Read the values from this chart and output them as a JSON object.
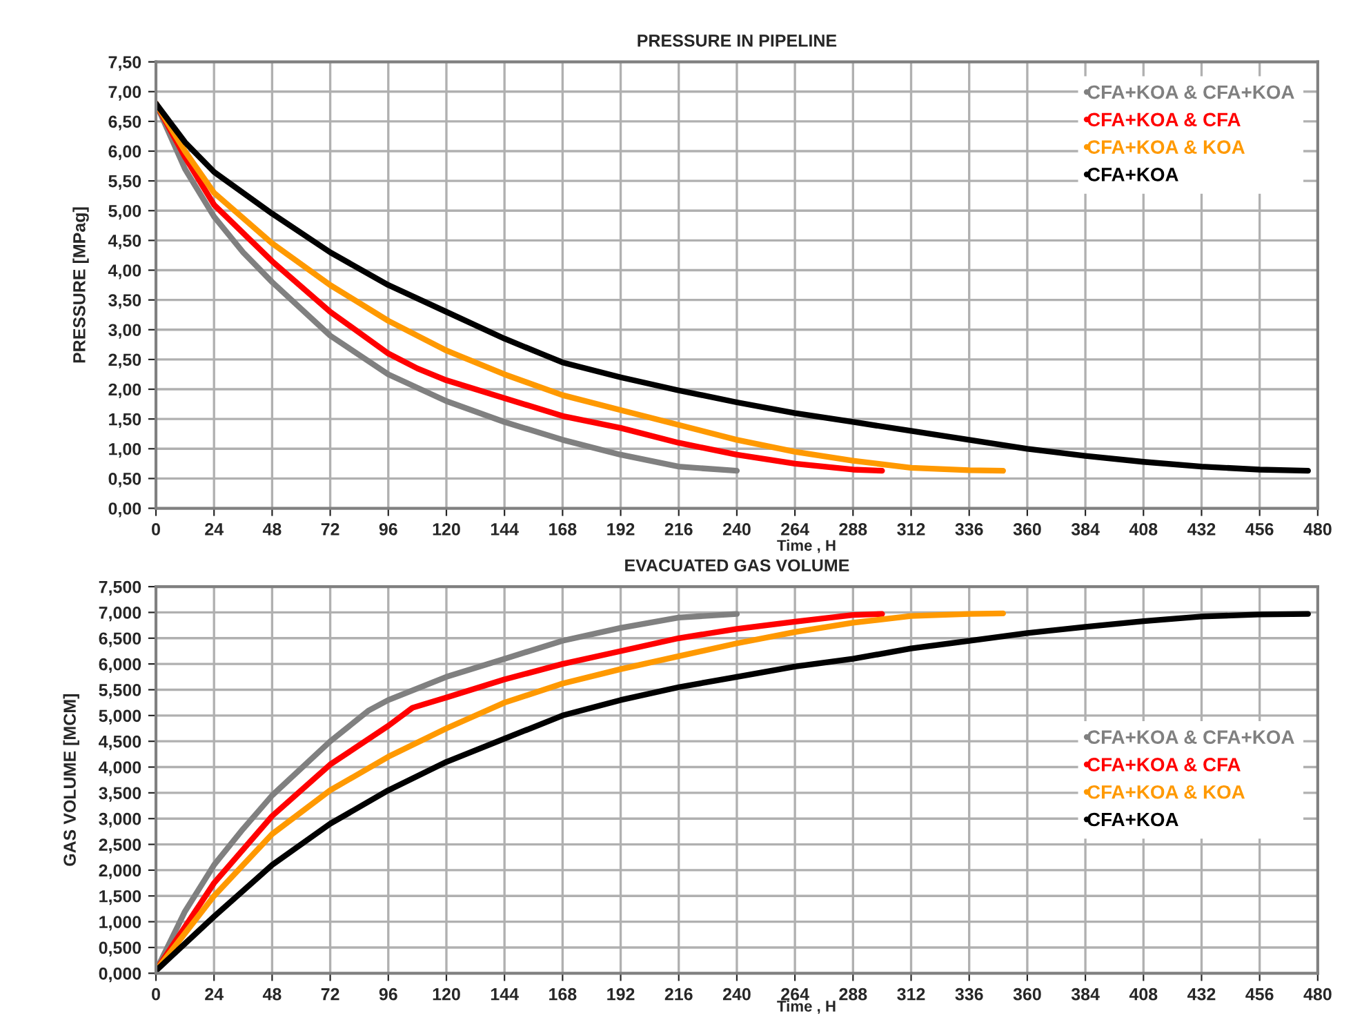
{
  "chart_data": [
    {
      "type": "line",
      "title": "PRESSURE IN PIPELINE",
      "xlabel": "Time , H",
      "ylabel": "PRESSURE [MPag]",
      "xlim": [
        0,
        480
      ],
      "xticks": [
        0,
        24,
        48,
        72,
        96,
        120,
        144,
        168,
        192,
        216,
        240,
        264,
        288,
        312,
        336,
        360,
        384,
        408,
        432,
        456,
        480
      ],
      "ylim": [
        0,
        7.5
      ],
      "yticks": [
        {
          "value": 0,
          "label": "0,00"
        },
        {
          "value": 0.5,
          "label": "0,50"
        },
        {
          "value": 1,
          "label": "1,00"
        },
        {
          "value": 1.5,
          "label": "1,50"
        },
        {
          "value": 2,
          "label": "2,00"
        },
        {
          "value": 2.5,
          "label": "2,50"
        },
        {
          "value": 3,
          "label": "3,00"
        },
        {
          "value": 3.5,
          "label": "3,50"
        },
        {
          "value": 4,
          "label": "4,00"
        },
        {
          "value": 4.5,
          "label": "4,50"
        },
        {
          "value": 5,
          "label": "5,00"
        },
        {
          "value": 5.5,
          "label": "5,50"
        },
        {
          "value": 6,
          "label": "6,00"
        },
        {
          "value": 6.5,
          "label": "6,50"
        },
        {
          "value": 7,
          "label": "7,00"
        },
        {
          "value": 7.5,
          "label": "7,50"
        }
      ],
      "grid": true,
      "legend": "top right",
      "line_style": "solid",
      "marker": "none",
      "series": [
        {
          "name": "CFA+KOA & CFA+KOA",
          "color": "#808080",
          "x": [
            0,
            12,
            24,
            36,
            48,
            72,
            96,
            120,
            144,
            168,
            192,
            216,
            240
          ],
          "values": [
            6.8,
            5.7,
            4.9,
            4.3,
            3.8,
            2.9,
            2.25,
            1.8,
            1.45,
            1.15,
            0.9,
            0.7,
            0.63
          ]
        },
        {
          "name": "CFA+KOA & CFA",
          "color": "#ff0000",
          "x": [
            0,
            12,
            24,
            48,
            72,
            96,
            108,
            120,
            144,
            168,
            192,
            216,
            240,
            264,
            288,
            300
          ],
          "values": [
            6.8,
            5.9,
            5.1,
            4.15,
            3.3,
            2.6,
            2.35,
            2.15,
            1.85,
            1.55,
            1.35,
            1.1,
            0.9,
            0.75,
            0.65,
            0.63
          ]
        },
        {
          "name": "CFA+KOA & KOA",
          "color": "#ff9900",
          "x": [
            0,
            12,
            24,
            48,
            72,
            96,
            120,
            144,
            168,
            192,
            216,
            240,
            264,
            288,
            312,
            336,
            350
          ],
          "values": [
            6.8,
            6.0,
            5.3,
            4.45,
            3.75,
            3.15,
            2.65,
            2.25,
            1.9,
            1.65,
            1.4,
            1.15,
            0.95,
            0.8,
            0.68,
            0.64,
            0.63
          ]
        },
        {
          "name": "CFA+KOA",
          "color": "#000000",
          "x": [
            0,
            12,
            24,
            48,
            72,
            96,
            120,
            144,
            168,
            192,
            216,
            240,
            264,
            288,
            312,
            336,
            360,
            384,
            408,
            432,
            456,
            476
          ],
          "values": [
            6.8,
            6.15,
            5.65,
            4.95,
            4.3,
            3.75,
            3.3,
            2.85,
            2.45,
            2.2,
            1.98,
            1.78,
            1.6,
            1.45,
            1.3,
            1.15,
            1.0,
            0.88,
            0.78,
            0.7,
            0.65,
            0.63
          ]
        }
      ]
    },
    {
      "type": "line",
      "title": "EVACUATED GAS VOLUME",
      "xlabel": "Time , H",
      "ylabel": "GAS VOLUME [MCM]",
      "xlim": [
        0,
        480
      ],
      "xticks": [
        0,
        24,
        48,
        72,
        96,
        120,
        144,
        168,
        192,
        216,
        240,
        264,
        288,
        312,
        336,
        360,
        384,
        408,
        432,
        456,
        480
      ],
      "ylim": [
        0,
        7.5
      ],
      "yticks": [
        {
          "value": 0,
          "label": "0,000"
        },
        {
          "value": 0.5,
          "label": "0,500"
        },
        {
          "value": 1,
          "label": "1,000"
        },
        {
          "value": 1.5,
          "label": "1,500"
        },
        {
          "value": 2,
          "label": "2,000"
        },
        {
          "value": 2.5,
          "label": "2,500"
        },
        {
          "value": 3,
          "label": "3,000"
        },
        {
          "value": 3.5,
          "label": "3,500"
        },
        {
          "value": 4,
          "label": "4,000"
        },
        {
          "value": 4.5,
          "label": "4,500"
        },
        {
          "value": 5,
          "label": "5,000"
        },
        {
          "value": 5.5,
          "label": "5,500"
        },
        {
          "value": 6,
          "label": "6,000"
        },
        {
          "value": 6.5,
          "label": "6,500"
        },
        {
          "value": 7,
          "label": "7,000"
        },
        {
          "value": 7.5,
          "label": "7,500"
        }
      ],
      "grid": true,
      "legend": "right",
      "line_style": "solid",
      "marker": "none",
      "series": [
        {
          "name": "CFA+KOA & CFA+KOA",
          "color": "#808080",
          "x": [
            0,
            12,
            24,
            36,
            48,
            72,
            88,
            96,
            120,
            144,
            168,
            192,
            216,
            240
          ],
          "values": [
            0.05,
            1.2,
            2.1,
            2.8,
            3.45,
            4.5,
            5.1,
            5.3,
            5.75,
            6.1,
            6.45,
            6.7,
            6.9,
            6.97
          ]
        },
        {
          "name": "CFA+KOA & CFA",
          "color": "#ff0000",
          "x": [
            0,
            24,
            48,
            72,
            96,
            106,
            120,
            144,
            168,
            192,
            216,
            240,
            264,
            288,
            300
          ],
          "values": [
            0.05,
            1.75,
            3.05,
            4.05,
            4.8,
            5.15,
            5.35,
            5.7,
            6.0,
            6.25,
            6.5,
            6.68,
            6.82,
            6.95,
            6.97
          ]
        },
        {
          "name": "CFA+KOA & KOA",
          "color": "#ff9900",
          "x": [
            0,
            24,
            48,
            72,
            96,
            120,
            144,
            168,
            192,
            216,
            240,
            264,
            288,
            312,
            336,
            350
          ],
          "values": [
            0.05,
            1.5,
            2.7,
            3.55,
            4.2,
            4.75,
            5.25,
            5.62,
            5.9,
            6.15,
            6.4,
            6.62,
            6.8,
            6.93,
            6.97,
            6.98
          ]
        },
        {
          "name": "CFA+KOA",
          "color": "#000000",
          "x": [
            0,
            24,
            48,
            72,
            96,
            120,
            144,
            168,
            192,
            216,
            240,
            264,
            288,
            312,
            336,
            360,
            384,
            408,
            432,
            456,
            476
          ],
          "values": [
            0.05,
            1.1,
            2.1,
            2.9,
            3.55,
            4.1,
            4.55,
            5.0,
            5.3,
            5.55,
            5.75,
            5.95,
            6.1,
            6.3,
            6.45,
            6.6,
            6.72,
            6.83,
            6.92,
            6.96,
            6.97
          ]
        }
      ]
    }
  ]
}
